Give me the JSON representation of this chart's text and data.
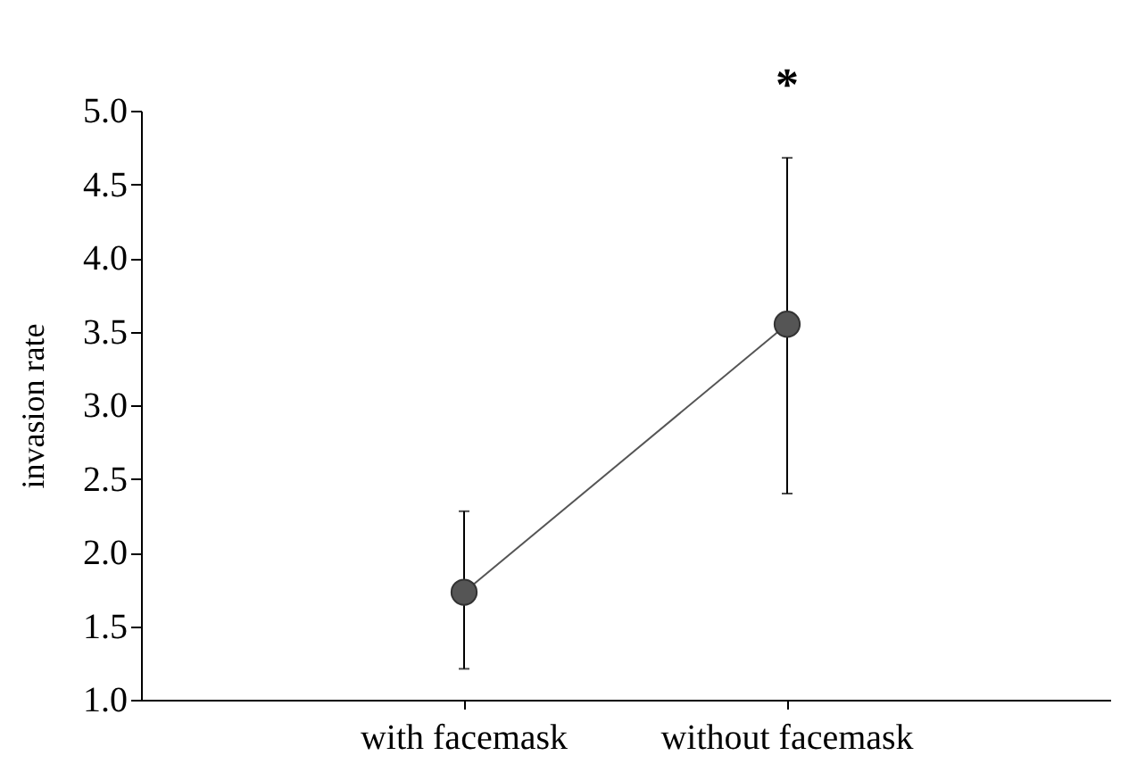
{
  "chart_data": {
    "type": "line",
    "ylabel": "invasion rate",
    "categories": [
      "with facemask",
      "without facemask"
    ],
    "series": [
      {
        "color": "#555555",
        "values": [
          1.73,
          3.55
        ],
        "errors": [
          [
            1.21,
            2.28
          ],
          [
            2.4,
            4.68
          ]
        ]
      }
    ],
    "ylim": [
      1.0,
      5.0
    ],
    "yticks": [
      {
        "value": 1.0,
        "label": "1.0"
      },
      {
        "value": 1.5,
        "label": "1.5"
      },
      {
        "value": 2.0,
        "label": "2.0"
      },
      {
        "value": 2.5,
        "label": "2.5"
      },
      {
        "value": 3.0,
        "label": "3.0"
      },
      {
        "value": 3.5,
        "label": "3.5"
      },
      {
        "value": 4.0,
        "label": "4.0"
      },
      {
        "value": 4.5,
        "label": "4.5"
      },
      {
        "value": 5.0,
        "label": "5.0"
      }
    ],
    "marker": "circle",
    "line_style": "solid",
    "grid": false,
    "annotations": [
      "*"
    ]
  }
}
